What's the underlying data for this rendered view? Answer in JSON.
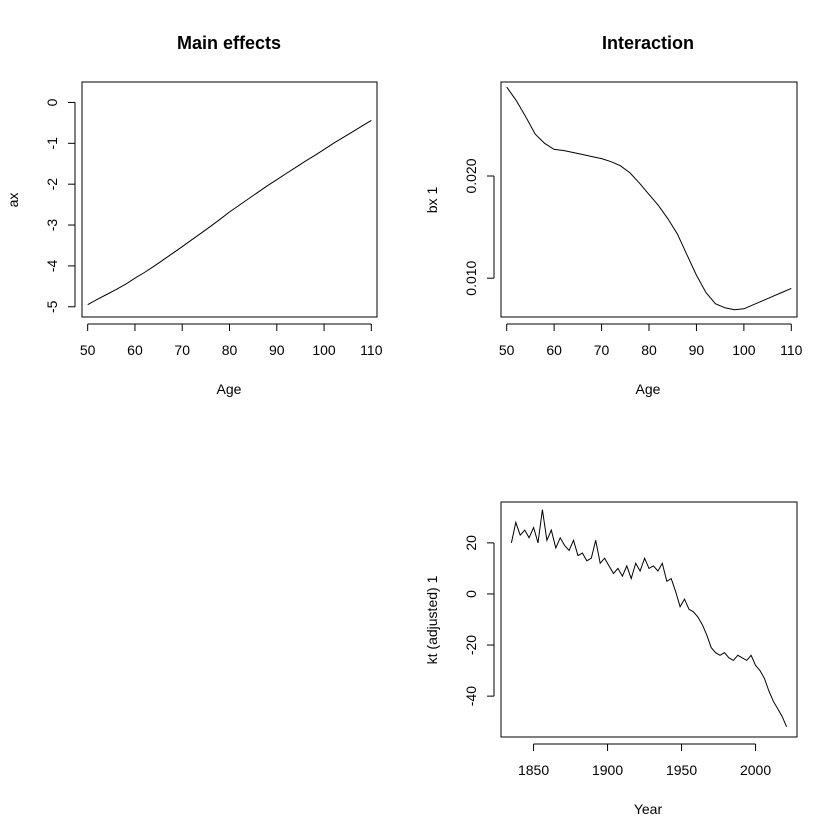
{
  "chart_data": [
    {
      "type": "line",
      "title": "Main effects",
      "xlabel": "Age",
      "ylabel": "ax",
      "xlim": [
        48.8,
        111.2
      ],
      "ylim": [
        -5.25,
        0.5
      ],
      "xticks": [
        50,
        60,
        70,
        80,
        90,
        100,
        110
      ],
      "yticks": [
        -5,
        -4,
        -3,
        -2,
        -1,
        0
      ],
      "series": [
        {
          "x": [
            50,
            52,
            54,
            56,
            58,
            60,
            62,
            64,
            66,
            68,
            70,
            72,
            74,
            76,
            78,
            80,
            82,
            84,
            86,
            88,
            90,
            92,
            94,
            96,
            98,
            100,
            102,
            104,
            106,
            108,
            110
          ],
          "values": [
            -4.95,
            -4.82,
            -4.7,
            -4.58,
            -4.45,
            -4.3,
            -4.16,
            -4.01,
            -3.85,
            -3.69,
            -3.53,
            -3.36,
            -3.2,
            -3.03,
            -2.86,
            -2.68,
            -2.52,
            -2.36,
            -2.2,
            -2.04,
            -1.89,
            -1.74,
            -1.59,
            -1.44,
            -1.3,
            -1.15,
            -1.0,
            -0.86,
            -0.72,
            -0.58,
            -0.44
          ]
        }
      ]
    },
    {
      "type": "line",
      "title": "Interaction",
      "xlabel": "Age",
      "ylabel": "bx 1",
      "xlim": [
        48.8,
        111.2
      ],
      "ylim": [
        0.0062,
        0.0292
      ],
      "xticks": [
        50,
        60,
        70,
        80,
        90,
        100,
        110
      ],
      "yticks": [
        0.01,
        0.02
      ],
      "ytick_labels": [
        "0.010",
        "0.020"
      ],
      "series": [
        {
          "x": [
            50,
            52,
            54,
            56,
            58,
            60,
            62,
            64,
            66,
            68,
            70,
            72,
            74,
            76,
            78,
            80,
            82,
            84,
            86,
            88,
            90,
            92,
            94,
            96,
            98,
            100,
            102,
            104,
            106,
            108,
            110
          ],
          "values": [
            0.0287,
            0.0274,
            0.0258,
            0.0241,
            0.0232,
            0.0226,
            0.0225,
            0.0223,
            0.0221,
            0.0219,
            0.0217,
            0.0214,
            0.021,
            0.0203,
            0.0193,
            0.0182,
            0.0171,
            0.0158,
            0.0143,
            0.0123,
            0.0103,
            0.0086,
            0.0075,
            0.0071,
            0.0069,
            0.007,
            0.0074,
            0.0078,
            0.0082,
            0.0086,
            0.009
          ]
        }
      ]
    },
    {
      "type": "line",
      "title": "",
      "xlabel": "Year",
      "ylabel": "kt (adjusted) 1",
      "xlim": [
        1828,
        2028
      ],
      "ylim": [
        -56,
        36
      ],
      "xticks": [
        1850,
        1900,
        1950,
        2000
      ],
      "yticks": [
        -40,
        -20,
        0,
        20
      ],
      "series": [
        {
          "x": [
            1835,
            1838,
            1841,
            1844,
            1847,
            1850,
            1853,
            1856,
            1859,
            1862,
            1865,
            1868,
            1871,
            1874,
            1877,
            1880,
            1883,
            1886,
            1889,
            1892,
            1895,
            1898,
            1901,
            1904,
            1907,
            1910,
            1913,
            1916,
            1919,
            1922,
            1925,
            1928,
            1931,
            1934,
            1937,
            1940,
            1943,
            1946,
            1949,
            1952,
            1955,
            1958,
            1961,
            1964,
            1967,
            1970,
            1973,
            1976,
            1979,
            1982,
            1985,
            1988,
            1991,
            1994,
            1997,
            2000,
            2003,
            2006,
            2009,
            2012,
            2015,
            2018,
            2021
          ],
          "values": [
            20,
            28,
            23,
            25,
            22,
            26,
            20,
            33,
            21,
            25,
            18,
            22,
            19,
            17,
            21,
            15,
            16,
            13,
            14,
            21,
            12,
            14,
            11,
            8,
            10,
            7,
            11,
            6,
            12,
            9,
            14,
            10,
            11,
            9,
            12,
            5,
            6,
            1,
            -5,
            -2,
            -6,
            -7,
            -9,
            -12,
            -16,
            -21,
            -23,
            -24,
            -23,
            -25,
            -26,
            -24,
            -25,
            -26,
            -24,
            -28,
            -30,
            -33,
            -38,
            -42,
            -45,
            -48,
            -52
          ]
        }
      ]
    }
  ]
}
